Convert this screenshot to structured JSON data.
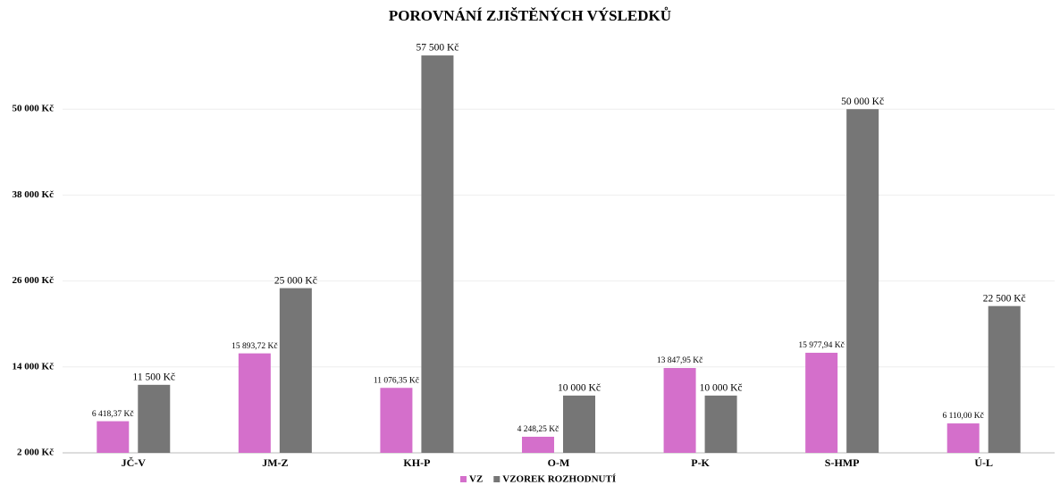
{
  "chart_data": {
    "type": "bar",
    "title": "POROVNÁNÍ ZJIŠTĚNÝCH VÝSLEDKŮ",
    "categories": [
      "JČ-V",
      "JM-Z",
      "KH-P",
      "O-M",
      "P-K",
      "S-HMP",
      "Ú-L"
    ],
    "series": [
      {
        "name": "VZ",
        "color": "#d46fcb",
        "values": [
          6418.37,
          15893.72,
          11076.35,
          4248.25,
          13847.95,
          15977.94,
          6110.0
        ],
        "value_labels": [
          "6 418,37 Kč",
          "15 893,72 Kč",
          "11 076,35 Kč",
          "4 248,25 Kč",
          "13 847,95 Kč",
          "15 977,94 Kč",
          "6 110,00 Kč"
        ]
      },
      {
        "name": "VZOREK ROZHODNUTÍ",
        "color": "#767676",
        "values": [
          11500,
          25000,
          57500,
          10000,
          10000,
          50000,
          22500
        ],
        "value_labels": [
          "11 500 Kč",
          "25 000 Kč",
          "57 500 Kč",
          "10 000 Kč",
          "10 000 Kč",
          "50 000 Kč",
          "22 500 Kč"
        ]
      }
    ],
    "ylim": [
      2000,
      62000
    ],
    "yticks": [
      {
        "value": 2000,
        "label": "2 000 Kč"
      },
      {
        "value": 14000,
        "label": "14 000 Kč"
      },
      {
        "value": 26000,
        "label": "26 000 Kč"
      },
      {
        "value": 38000,
        "label": "38 000 Kč"
      },
      {
        "value": 50000,
        "label": "50 000 Kč"
      }
    ],
    "grid": true,
    "legend": "bottom"
  }
}
